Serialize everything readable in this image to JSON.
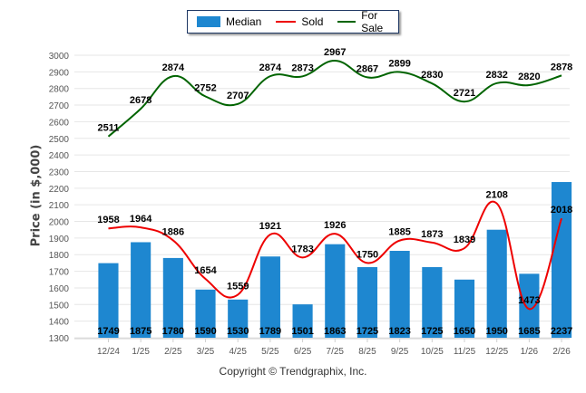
{
  "legend": {
    "items": [
      {
        "label": "Median",
        "kind": "bar",
        "color": "#1e87d0"
      },
      {
        "label": "Sold",
        "kind": "line",
        "color": "#ee0000"
      },
      {
        "label": "For Sale",
        "kind": "line",
        "color": "#006400"
      }
    ]
  },
  "copyright": "Copyright © Trendgraphix, Inc.",
  "chart_data": {
    "type": "bar",
    "title": "",
    "xlabel": "",
    "ylabel": "Price (in $,000)",
    "ylim": [
      1300,
      3000
    ],
    "ytick_step": 100,
    "grid": true,
    "legend_position": "top-center",
    "categories": [
      "12/24",
      "1/25",
      "2/25",
      "3/25",
      "4/25",
      "5/25",
      "6/25",
      "7/25",
      "8/25",
      "9/25",
      "10/25",
      "11/25",
      "12/25",
      "1/26",
      "2/26"
    ],
    "series": [
      {
        "name": "Median",
        "type": "bar",
        "color": "#1e87d0",
        "values": [
          1749,
          1875,
          1780,
          1590,
          1530,
          1789,
          1501,
          1863,
          1725,
          1823,
          1725,
          1650,
          1950,
          1685,
          2237
        ]
      },
      {
        "name": "Sold",
        "type": "line",
        "color": "#ee0000",
        "values": [
          1958,
          1964,
          1886,
          1654,
          1559,
          1921,
          1783,
          1926,
          1750,
          1885,
          1873,
          1839,
          2108,
          1473,
          2018
        ]
      },
      {
        "name": "For Sale",
        "type": "line",
        "color": "#006400",
        "values": [
          2511,
          2678,
          2874,
          2752,
          2707,
          2874,
          2873,
          2967,
          2867,
          2899,
          2830,
          2721,
          2832,
          2820,
          2878
        ]
      }
    ]
  }
}
